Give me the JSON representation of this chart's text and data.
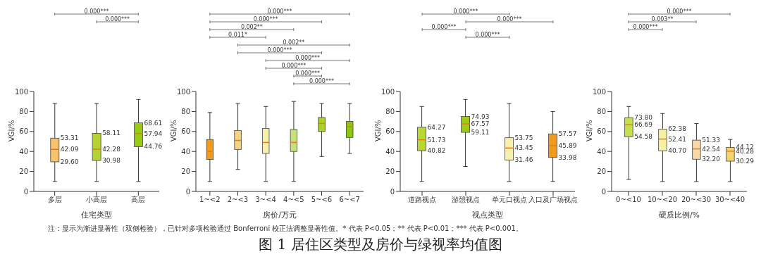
{
  "chart_data": [
    {
      "type": "box",
      "xlabel": "住宅类型",
      "ylabel": "VGI/%",
      "categories": [
        "多层",
        "小高层",
        "高层"
      ],
      "colors": [
        "#f5c46e",
        "#b3d335",
        "#98cb12"
      ],
      "ylim": [
        0,
        100
      ],
      "yticks": [
        0,
        20,
        40,
        60,
        80,
        100
      ],
      "boxes": [
        {
          "low": 10,
          "q1": 29.6,
          "median": 42.09,
          "q3": 53.31,
          "high": 88
        },
        {
          "low": 10,
          "q1": 30.98,
          "median": 42.28,
          "q3": 58.11,
          "high": 88
        },
        {
          "low": 10,
          "q1": 44.76,
          "median": 57.94,
          "q3": 68.61,
          "high": 92
        }
      ],
      "annotations": [
        "0.000***",
        "0.000***",
        {
          "text": "53.31",
          "x": "多层",
          "y": 53.31
        },
        {
          "text": "42.09",
          "x": "多层",
          "y": 42.09
        },
        {
          "text": "29.60",
          "x": "多层",
          "y": 29.6
        },
        {
          "text": "58.11",
          "x": "小高层",
          "y": 58.11
        },
        {
          "text": "42.28",
          "x": "小高层",
          "y": 42.28
        },
        {
          "text": "30.98",
          "x": "小高层",
          "y": 30.98
        },
        {
          "text": "68.61",
          "x": "高层",
          "y": 68.61
        },
        {
          "text": "57.94",
          "x": "高层",
          "y": 57.94
        },
        {
          "text": "44.76",
          "x": "高层",
          "y": 44.76
        }
      ]
    },
    {
      "type": "box",
      "xlabel": "房价/万元",
      "ylabel": "VGI/%",
      "categories": [
        "1~<2",
        "2~<3",
        "3~<4",
        "4~<5",
        "5~<6",
        "6~<7"
      ],
      "colors": [
        "#f29a1e",
        "#f3d481",
        "#f7f0aa",
        "#c8e27a",
        "#a8d42a",
        "#8cc814"
      ],
      "ylim": [
        0,
        100
      ],
      "yticks": [
        0,
        20,
        40,
        60,
        80,
        100
      ],
      "boxes": [
        {
          "low": 10,
          "q1": 32,
          "median": 40,
          "q3": 52,
          "high": 79
        },
        {
          "low": 22,
          "q1": 42,
          "median": 51,
          "q3": 61,
          "high": 88
        },
        {
          "low": 10,
          "q1": 38,
          "median": 49,
          "q3": 63,
          "high": 85
        },
        {
          "low": 10,
          "q1": 40,
          "median": 49,
          "q3": 62,
          "high": 90
        },
        {
          "low": 35,
          "q1": 60,
          "median": 68,
          "q3": 74,
          "high": 88
        },
        {
          "low": 38,
          "q1": 54,
          "median": 65,
          "q3": 70,
          "high": 88
        }
      ],
      "annotations": [
        "0.000***",
        "0.000***",
        "0.002**",
        "0.011*",
        "0.002**",
        "0.000***",
        "0.000***",
        "0.000***",
        "0.000***",
        "0.000***"
      ]
    },
    {
      "type": "box",
      "xlabel": "视点类型",
      "ylabel": "VGI/%",
      "categories": [
        "道路视点",
        "游憩视点",
        "单元口视点",
        "入口及广场视点"
      ],
      "colors": [
        "#b8d92e",
        "#9ccc14",
        "#f7efaa",
        "#f29a1c"
      ],
      "ylim": [
        0,
        100
      ],
      "yticks": [
        0,
        20,
        40,
        60,
        80,
        100
      ],
      "boxes": [
        {
          "low": 10,
          "q1": 40.82,
          "median": 51.73,
          "q3": 64.27,
          "high": 85
        },
        {
          "low": 25,
          "q1": 59.11,
          "median": 67.57,
          "q3": 74.93,
          "high": 92
        },
        {
          "low": 10,
          "q1": 31.46,
          "median": 43.45,
          "q3": 53.75,
          "high": 88
        },
        {
          "low": 10,
          "q1": 33.98,
          "median": 45.89,
          "q3": 57.57,
          "high": 80
        }
      ],
      "annotations": [
        "0.000***",
        "0.000***",
        "0.000***",
        "0.000***",
        {
          "text": "64.27",
          "x": "道路视点",
          "y": 64.27
        },
        {
          "text": "51.73",
          "x": "道路视点",
          "y": 51.73
        },
        {
          "text": "40.82",
          "x": "道路视点",
          "y": 40.82
        },
        {
          "text": "74.93",
          "x": "游憩视点",
          "y": 74.93
        },
        {
          "text": "67.57",
          "x": "游憩视点",
          "y": 67.57
        },
        {
          "text": "59.11",
          "x": "游憩视点",
          "y": 59.11
        },
        {
          "text": "53.75",
          "x": "单元口视点",
          "y": 53.75
        },
        {
          "text": "43.45",
          "x": "单元口视点",
          "y": 43.45
        },
        {
          "text": "31.46",
          "x": "单元口视点",
          "y": 31.46
        },
        {
          "text": "57.57",
          "x": "入口及广场视点",
          "y": 57.57
        },
        {
          "text": "45.89",
          "x": "入口及广场视点",
          "y": 45.89
        },
        {
          "text": "33.98",
          "x": "入口及广场视点",
          "y": 33.98
        }
      ]
    },
    {
      "type": "box",
      "xlabel": "硬质比例/%",
      "ylabel": "VGI/%",
      "categories": [
        "0~<10",
        "10~<20",
        "20~<30",
        "30~<40"
      ],
      "colors": [
        "#c5e04a",
        "#f7f0a0",
        "#f8d7a8",
        "#f3d56a"
      ],
      "ylim": [
        0,
        100
      ],
      "yticks": [
        0,
        20,
        40,
        60,
        80,
        100
      ],
      "boxes": [
        {
          "low": 12,
          "q1": 54.58,
          "median": 66.69,
          "q3": 73.8,
          "high": 85
        },
        {
          "low": 10,
          "q1": 40.7,
          "median": 52.41,
          "q3": 62.38,
          "high": 78
        },
        {
          "low": 10,
          "q1": 32.2,
          "median": 42.54,
          "q3": 51.33,
          "high": 68
        },
        {
          "low": 10,
          "q1": 30.29,
          "median": 40.28,
          "q3": 44.12,
          "high": 52
        }
      ],
      "annotations": [
        "0.000***",
        "0.003**",
        "0.000***",
        {
          "text": "73.80",
          "x": "0~<10",
          "y": 73.8
        },
        {
          "text": "66.69",
          "x": "0~<10",
          "y": 66.69
        },
        {
          "text": "54.58",
          "x": "0~<10",
          "y": 54.58
        },
        {
          "text": "62.38",
          "x": "10~<20",
          "y": 62.38
        },
        {
          "text": "52.41",
          "x": "10~<20",
          "y": 52.41
        },
        {
          "text": "40.70",
          "x": "10~<20",
          "y": 40.7
        },
        {
          "text": "51.33",
          "x": "20~<30",
          "y": 51.33
        },
        {
          "text": "42.54",
          "x": "20~<30",
          "y": 42.54
        },
        {
          "text": "32.20",
          "x": "20~<30",
          "y": 32.2
        },
        {
          "text": "44.12",
          "x": "30~<40",
          "y": 44.12
        },
        {
          "text": "40.28",
          "x": "30~<40",
          "y": 40.28
        },
        {
          "text": "30.29",
          "x": "30~<40",
          "y": 30.29
        },
        "注：显示为渐进显著性（双侧检验），已针对多项检验通过 Bonferroni 校正法调整显著性值。* 代表 P<0.05；** 代表 P<0.01；*** 代表 P<0.001。",
        "图 1  居住区类型及房价与绿视率均值图"
      ]
    }
  ]
}
